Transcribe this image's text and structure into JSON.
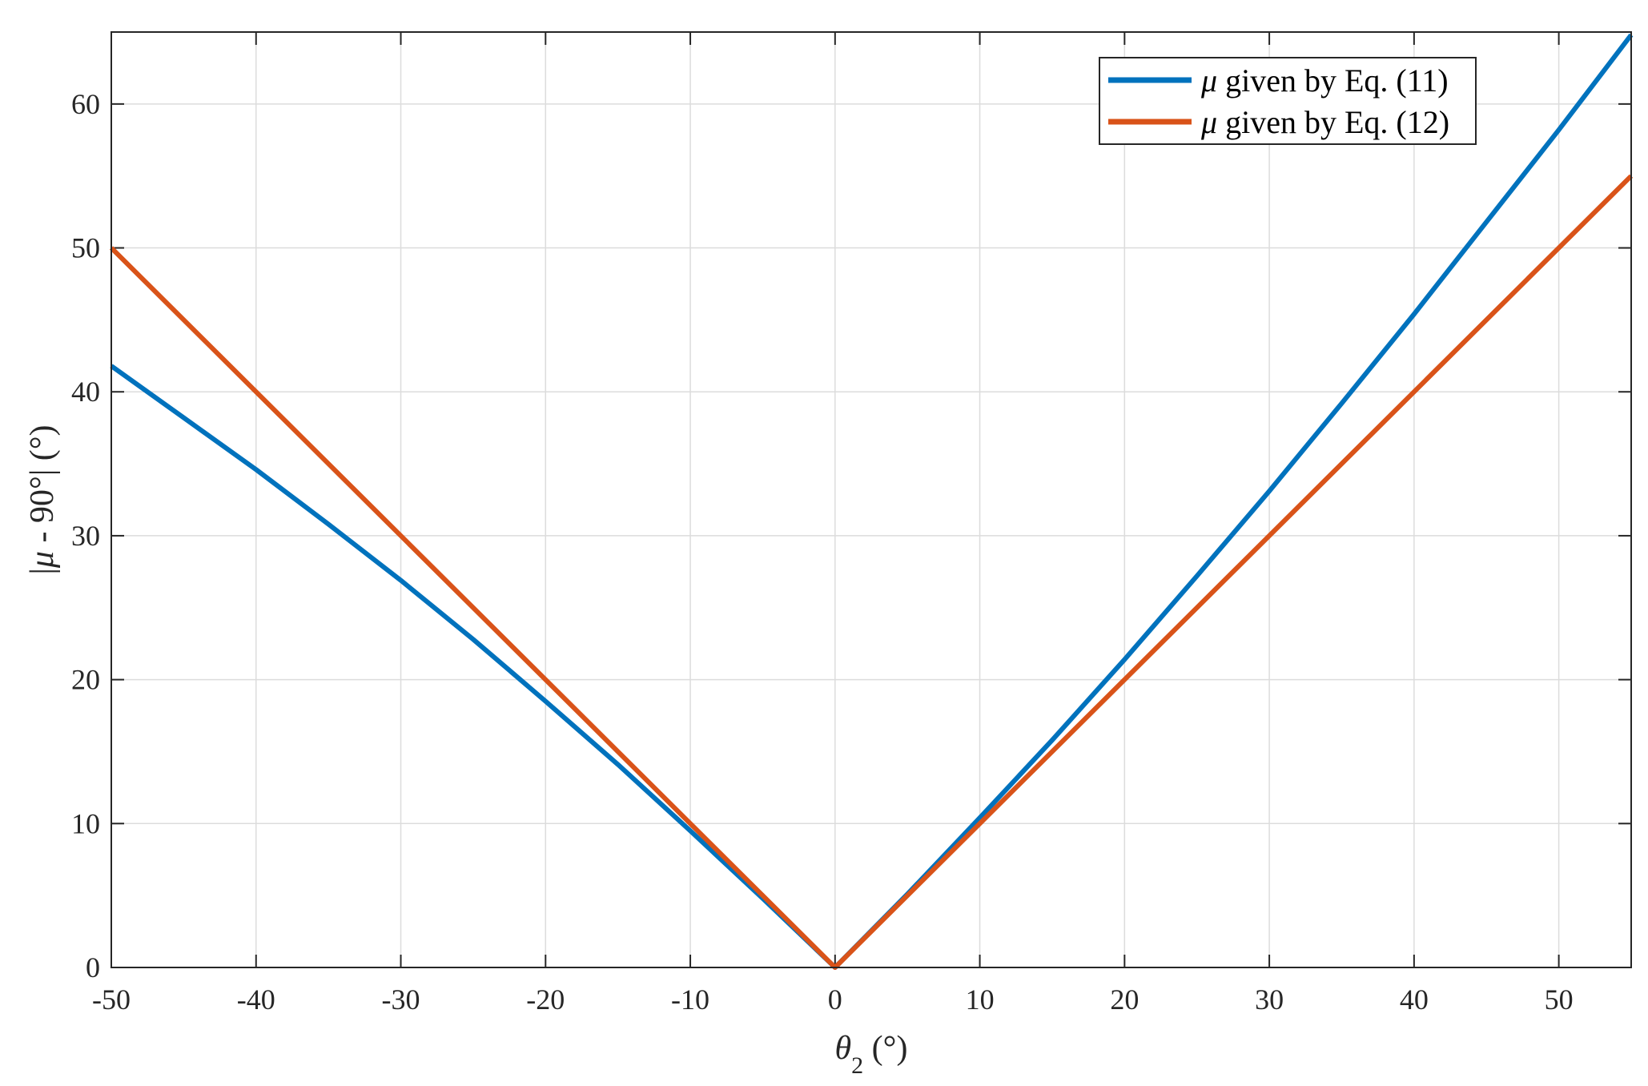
{
  "chart_data": {
    "type": "line",
    "xlabel_symbol": "θ",
    "xlabel_subscript": "2",
    "xlabel_unit": " (°)",
    "ylabel_prefix": "|",
    "ylabel_symbol": "μ",
    "ylabel_suffix": " - 90°| (°)",
    "xlim": [
      -50,
      55
    ],
    "ylim": [
      0,
      65
    ],
    "xticks": [
      -50,
      -40,
      -30,
      -20,
      -10,
      0,
      10,
      20,
      30,
      40,
      50
    ],
    "yticks": [
      0,
      10,
      20,
      30,
      40,
      50,
      60
    ],
    "grid": true,
    "legend_position": "top-right",
    "series": [
      {
        "name_symbol": "μ",
        "name": " given by Eq. (11)",
        "color": "#0072BD",
        "x": [
          -50,
          -45,
          -40,
          -35,
          -30,
          -25,
          -20,
          -15,
          -10,
          -5,
          0,
          5,
          10,
          15,
          20,
          25,
          30,
          35,
          40,
          45,
          50,
          55
        ],
        "y": [
          41.8,
          38.2,
          34.6,
          30.8,
          26.9,
          22.8,
          18.5,
          14.1,
          9.5,
          4.8,
          0,
          5.1,
          10.4,
          15.8,
          21.4,
          27.2,
          33.1,
          39.2,
          45.4,
          51.8,
          58.2,
          64.8
        ]
      },
      {
        "name_symbol": "μ",
        "name": " given by Eq. (12)",
        "color": "#D95319",
        "x": [
          -50,
          0,
          55
        ],
        "y": [
          50,
          0,
          55
        ]
      }
    ]
  }
}
